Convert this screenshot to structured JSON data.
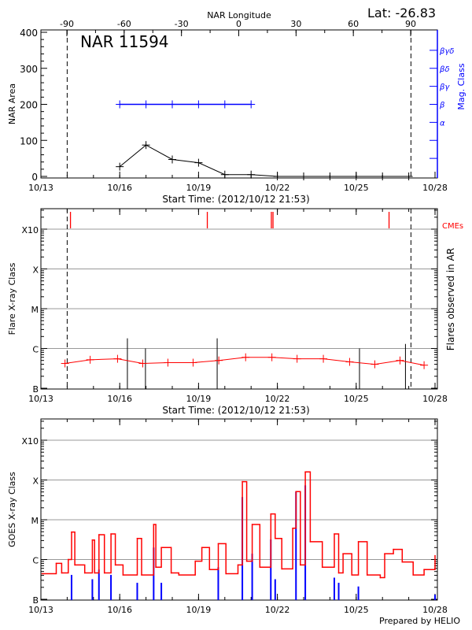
{
  "header": {
    "latitude_label": "Lat: -26.83",
    "credit": "Prepared by HELIO"
  },
  "chart_data": [
    {
      "type": "line",
      "panel": "nar",
      "title": "NAR 11594",
      "xlabel": "Start Time: (2012/10/12 21:53)",
      "x_ticks": [
        "10/13",
        "10/16",
        "10/19",
        "10/22",
        "10/25",
        "10/28"
      ],
      "xlim": [
        "2012-10-13T00:00",
        "2012-10-28T00:00"
      ],
      "top_axis": {
        "label": "NAR Longitude",
        "ticks": [
          -90,
          -60,
          -30,
          0,
          30,
          60,
          90
        ]
      },
      "ylabel": "NAR Area",
      "ylim": [
        0,
        400
      ],
      "y_ticks": [
        0,
        100,
        200,
        300,
        400
      ],
      "right_axis": {
        "label": "Mag. Class",
        "color": "#0000ff",
        "ticks": [
          {
            "area": 350,
            "label": "βγδ"
          },
          {
            "area": 300,
            "label": "βδ"
          },
          {
            "area": 250,
            "label": "βγ"
          },
          {
            "area": 200,
            "label": "β"
          },
          {
            "area": 150,
            "label": "α"
          },
          {
            "area": 100,
            "label": ""
          },
          {
            "area": 50,
            "label": ""
          }
        ]
      },
      "limb_lines": {
        "longitudes": [
          -90,
          90
        ],
        "dates": [
          "2012-10-14T00:00",
          "2012-10-27T02:00"
        ]
      },
      "series": [
        {
          "color": "#000000",
          "marker": "plus",
          "x": [
            "2012-10-16",
            "2012-10-17",
            "2012-10-18",
            "2012-10-19",
            "2012-10-20",
            "2012-10-21",
            "2012-10-22",
            "2012-10-23",
            "2012-10-24",
            "2012-10-25",
            "2012-10-26",
            "2012-10-27"
          ],
          "y": [
            27,
            87,
            47,
            38,
            5,
            5,
            0,
            0,
            0,
            0,
            0,
            0
          ]
        },
        {
          "color": "#0000ff",
          "marker": "plus",
          "x": [
            "2012-10-16",
            "2012-10-17",
            "2012-10-18",
            "2012-10-19",
            "2012-10-20",
            "2012-10-21"
          ],
          "y_class": [
            "β",
            "β",
            "β",
            "β",
            "β",
            "β"
          ],
          "y": [
            200,
            200,
            200,
            200,
            200,
            200
          ]
        }
      ]
    },
    {
      "type": "line",
      "panel": "flares",
      "xlabel": "Start Time: (2012/10/12 21:53)",
      "x_ticks": [
        "10/13",
        "10/16",
        "10/19",
        "10/22",
        "10/25",
        "10/28"
      ],
      "xlim": [
        "2012-10-13T00:00",
        "2012-10-28T00:00"
      ],
      "ylabel": "Flare X-ray Class",
      "right_label": "Flares observed in AR",
      "y_scale": "log",
      "ylim": [
        1e-07,
        0.0032
      ],
      "y_ticks": [
        {
          "value": 1e-07,
          "label": "B"
        },
        {
          "value": 1e-06,
          "label": "C"
        },
        {
          "value": 1e-05,
          "label": "M"
        },
        {
          "value": 0.0001,
          "label": "X"
        },
        {
          "value": 0.001,
          "label": "X10"
        }
      ],
      "grid": true,
      "limb_dates": [
        "2012-10-14T00:00",
        "2012-10-27T02:00"
      ],
      "cmes": {
        "label": "CMEs",
        "color": "#ff0000",
        "dates": [
          "2012-10-14T03:00",
          "2012-10-19T08:00",
          "2012-10-21T18:30",
          "2012-10-21T20:00",
          "2012-10-26T06:00"
        ]
      },
      "flares": {
        "color": "#000000",
        "dates": [
          "2012-10-16T07:00",
          "2012-10-16T23:30",
          "2012-10-19T17:00",
          "2012-10-25T03:00",
          "2012-10-26T21:00"
        ],
        "flux": [
          1.8e-06,
          1e-06,
          1.8e-06,
          1e-06,
          1.3e-06
        ]
      },
      "background": {
        "color": "#ff0000",
        "marker": "plus",
        "x": [
          "2012-10-13T22:00",
          "2012-10-14T21:00",
          "2012-10-15T22:00",
          "2012-10-16T21:00",
          "2012-10-17T20:00",
          "2012-10-18T19:00",
          "2012-10-19T18:30",
          "2012-10-20T19:00",
          "2012-10-21T19:00",
          "2012-10-22T18:00",
          "2012-10-23T18:00",
          "2012-10-24T18:00",
          "2012-10-25T17:00",
          "2012-10-26T16:00",
          "2012-10-27T14:00"
        ],
        "y": [
          4.2e-07,
          5.2e-07,
          5.5e-07,
          4.2e-07,
          4.4e-07,
          4.4e-07,
          5e-07,
          6e-07,
          6e-07,
          5.5e-07,
          5.5e-07,
          4.6e-07,
          4e-07,
          5e-07,
          3.8e-07
        ]
      }
    },
    {
      "type": "line",
      "panel": "goes",
      "x_ticks": [
        "10/13",
        "10/16",
        "10/19",
        "10/22",
        "10/25",
        "10/28"
      ],
      "xlim": [
        "2012-10-13T00:00",
        "2012-10-28T00:00"
      ],
      "ylabel": "GOES X-ray Class",
      "y_scale": "log",
      "ylim": [
        1e-07,
        0.0032
      ],
      "y_ticks": [
        {
          "value": 1e-07,
          "label": "B"
        },
        {
          "value": 1e-06,
          "label": "C"
        },
        {
          "value": 1e-05,
          "label": "M"
        },
        {
          "value": 0.0001,
          "label": "X"
        },
        {
          "value": 0.001,
          "label": "X10"
        }
      ],
      "grid": true,
      "series": [
        {
          "color": "#ff0000",
          "x": [
            "2012-10-13T01:00",
            "2012-10-13T14:00",
            "2012-10-13T19:00",
            "2012-10-14T01:00",
            "2012-10-14T04:00",
            "2012-10-14T07:00",
            "2012-10-14T16:00",
            "2012-10-14T23:00",
            "2012-10-15T01:00",
            "2012-10-15T05:00",
            "2012-10-15T10:00",
            "2012-10-15T16:00",
            "2012-10-15T20:00",
            "2012-10-16T03:00",
            "2012-10-16T16:00",
            "2012-10-16T20:00",
            "2012-10-17T07:00",
            "2012-10-17T09:00",
            "2012-10-17T14:00",
            "2012-10-17T23:00",
            "2012-10-18T06:00",
            "2012-10-18T21:00",
            "2012-10-19T03:00",
            "2012-10-19T10:00",
            "2012-10-19T18:00",
            "2012-10-20T01:00",
            "2012-10-20T12:00",
            "2012-10-20T16:00",
            "2012-10-20T20:00",
            "2012-10-21T01:00",
            "2012-10-21T08:00",
            "2012-10-21T18:00",
            "2012-10-21T22:00",
            "2012-10-22T04:00",
            "2012-10-22T14:00",
            "2012-10-22T17:00",
            "2012-10-22T21:00",
            "2012-10-23T01:30",
            "2012-10-23T06:00",
            "2012-10-23T17:00",
            "2012-10-24T04:00",
            "2012-10-24T08:00",
            "2012-10-24T12:00",
            "2012-10-24T20:00",
            "2012-10-25T02:00",
            "2012-10-25T10:00",
            "2012-10-25T22:00",
            "2012-10-26T02:00",
            "2012-10-26T10:00",
            "2012-10-26T18:00",
            "2012-10-27T04:00",
            "2012-10-27T14:00",
            "2012-10-28T00:00"
          ],
          "y": [
            4.4e-07,
            8e-07,
            4.6e-07,
            1e-06,
            4.9e-06,
            7.3e-07,
            4.6e-07,
            3.1e-06,
            4.6e-07,
            4.2e-06,
            4.6e-07,
            4.4e-06,
            7.3e-07,
            4.1e-07,
            3.4e-06,
            4.1e-07,
            7.6e-06,
            6.4e-07,
            2e-06,
            4.6e-07,
            4.1e-07,
            9.1e-07,
            2e-06,
            5.6e-07,
            2.5e-06,
            4.4e-07,
            7.3e-07,
            9.1e-05,
            9.1e-07,
            7.6e-06,
            6.4e-07,
            1.4e-05,
            3.4e-06,
            5.8e-07,
            6.1e-06,
            5.1e-05,
            7.3e-07,
            0.00016,
            2.8e-06,
            6.4e-07,
            4.4e-06,
            4.6e-07,
            1.4e-06,
            4.1e-07,
            2.8e-06,
            4.1e-07,
            3.5e-07,
            1.4e-06,
            1.8e-06,
            8.7e-07,
            4.1e-07,
            5.6e-07,
            1.25e-06
          ]
        },
        {
          "color": "#0000ff",
          "style": "spikes",
          "x": [
            "2012-10-14T04:00",
            "2012-10-14T23:00",
            "2012-10-15T05:00",
            "2012-10-15T16:00",
            "2012-10-16T16:00",
            "2012-10-17T07:00",
            "2012-10-17T14:00",
            "2012-10-19T18:00",
            "2012-10-20T16:00",
            "2012-10-21T01:00",
            "2012-10-21T18:00",
            "2012-10-21T22:00",
            "2012-10-22T17:00",
            "2012-10-23T01:30",
            "2012-10-24T04:00",
            "2012-10-24T08:00",
            "2012-10-25T02:00",
            "2012-10-28T00:00"
          ],
          "y": [
            4.1e-07,
            3.2e-07,
            5.6e-07,
            4.1e-07,
            2.6e-07,
            2e-06,
            2.6e-07,
            6.4e-07,
            3.7e-05,
            1.4e-06,
            3.2e-06,
            3.2e-07,
            5.1e-05,
            7.3e-05,
            3.5e-07,
            2.6e-07,
            2.1e-07,
            1.3e-07
          ]
        }
      ]
    }
  ]
}
